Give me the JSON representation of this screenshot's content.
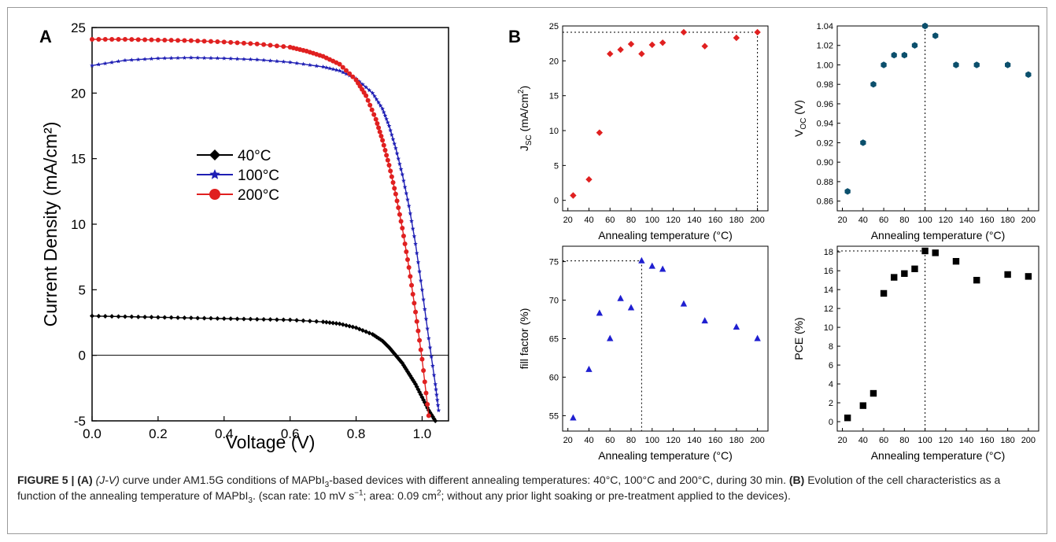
{
  "panelA": {
    "label": "A",
    "xlabel": "Voltage (V)",
    "ylabel": "Current Density (mA/cm²)"
  },
  "panelB": {
    "label": "B"
  },
  "caption": {
    "fig_label": "FIGURE 5 |",
    "a_label": "(A)",
    "jv": "(J-V)",
    "part1": " curve under AM1.5G conditions of MAPbI",
    "sub3": "3",
    "part2": "-based devices with different annealing temperatures: 40°C, 100°C and 200°C, during 30 min.",
    "b_label": "(B)",
    "part3": "Evolution of the cell characteristics as a function of the annealing temperature of MAPbI",
    "sub3b": "3",
    "part4": ". (scan rate: 10 mV s",
    "sup1": "−1",
    "part5": "; area: 0.09 cm",
    "sup2": "2",
    "part6": "; without any prior light soaking or pre-treatment applied to the devices)."
  },
  "chart_data": [
    {
      "type": "line",
      "panel": "A",
      "xlabel": "Voltage (V)",
      "ylabel": "Current Density (mA/cm²)",
      "xlim": [
        0,
        1.08
      ],
      "ylim": [
        -5,
        25
      ],
      "xticks": [
        0.0,
        0.2,
        0.4,
        0.6,
        0.8,
        1.0
      ],
      "yticks": [
        -5,
        0,
        5,
        10,
        15,
        20,
        25
      ],
      "xtick_labels": [
        "0.0",
        "0.2",
        "0.4",
        "0.6",
        "0.8",
        "1.0"
      ],
      "ytick_labels": [
        "-5",
        "0",
        "5",
        "10",
        "15",
        "20",
        "25"
      ],
      "legend_position": "center-left",
      "series": [
        {
          "name": "40°C",
          "color": "#000000",
          "marker": "diamond",
          "x": [
            0,
            0.1,
            0.2,
            0.3,
            0.4,
            0.5,
            0.6,
            0.7,
            0.75,
            0.8,
            0.85,
            0.88,
            0.9,
            0.92,
            0.94,
            0.96,
            0.98,
            1.0,
            1.02,
            1.04
          ],
          "y": [
            3.0,
            2.95,
            2.9,
            2.85,
            2.8,
            2.75,
            2.7,
            2.55,
            2.4,
            2.1,
            1.6,
            1.1,
            0.6,
            0.0,
            -0.6,
            -1.4,
            -2.2,
            -3.2,
            -4.2,
            -5.0
          ]
        },
        {
          "name": "100°C",
          "color": "#1f1fb4",
          "marker": "star",
          "x": [
            0,
            0.1,
            0.2,
            0.3,
            0.4,
            0.5,
            0.6,
            0.7,
            0.75,
            0.8,
            0.85,
            0.88,
            0.9,
            0.92,
            0.94,
            0.96,
            0.98,
            1.0,
            1.02,
            1.04,
            1.05
          ],
          "y": [
            22.1,
            22.5,
            22.65,
            22.7,
            22.65,
            22.55,
            22.35,
            22.0,
            21.7,
            21.1,
            20.0,
            18.8,
            17.5,
            15.8,
            13.8,
            11.4,
            8.5,
            5.0,
            1.3,
            -2.2,
            -4.2
          ]
        },
        {
          "name": "200°C",
          "color": "#e02020",
          "marker": "circle",
          "x": [
            0,
            0.1,
            0.2,
            0.3,
            0.4,
            0.5,
            0.6,
            0.65,
            0.7,
            0.75,
            0.8,
            0.83,
            0.86,
            0.88,
            0.9,
            0.92,
            0.94,
            0.96,
            0.98,
            1.0,
            1.02
          ],
          "y": [
            24.1,
            24.1,
            24.05,
            24.0,
            23.9,
            23.75,
            23.5,
            23.2,
            22.8,
            22.2,
            21.0,
            19.8,
            18.0,
            16.4,
            14.5,
            12.3,
            9.7,
            6.7,
            3.3,
            -0.3,
            -4.6
          ]
        }
      ]
    },
    {
      "type": "scatter",
      "panel": "B1",
      "xlabel": "Annealing temperature (°C)",
      "ylabel": "J_SC (mA/cm²)",
      "ylabel_main": "J",
      "ylabel_sub": "SC",
      "ylabel_rest": " (mA/cm",
      "ylabel_sup": "2",
      "ylabel_end": ")",
      "xlim": [
        15,
        210
      ],
      "ylim": [
        -1.5,
        25
      ],
      "xticks": [
        20,
        40,
        60,
        80,
        100,
        120,
        140,
        160,
        180,
        200
      ],
      "xtick_labels": [
        "20",
        "40",
        "60",
        "80",
        "100",
        "120",
        "140",
        "160",
        "180",
        "200"
      ],
      "yticks": [
        0,
        5,
        10,
        15,
        20,
        25
      ],
      "ytick_labels": [
        "0",
        "5",
        "10",
        "15",
        "20",
        "25"
      ],
      "color": "#e02020",
      "marker": "diamond",
      "x": [
        25,
        40,
        50,
        60,
        70,
        80,
        90,
        100,
        110,
        130,
        150,
        180,
        200
      ],
      "y": [
        0.7,
        3.0,
        9.7,
        21.0,
        21.6,
        22.4,
        21.0,
        22.3,
        22.6,
        24.1,
        22.1,
        23.3,
        24.1
      ],
      "ref_x": 200,
      "ref_y": 24.1
    },
    {
      "type": "scatter",
      "panel": "B2",
      "xlabel": "Annealing temperature (°C)",
      "ylabel": "V_OC (V)",
      "ylabel_main": "V",
      "ylabel_sub": "OC",
      "ylabel_rest": " (V)",
      "ylabel_sup": "",
      "ylabel_end": "",
      "xlim": [
        15,
        210
      ],
      "ylim": [
        0.85,
        1.04
      ],
      "xticks": [
        20,
        40,
        60,
        80,
        100,
        120,
        140,
        160,
        180,
        200
      ],
      "xtick_labels": [
        "20",
        "40",
        "60",
        "80",
        "100",
        "120",
        "140",
        "160",
        "180",
        "200"
      ],
      "yticks": [
        0.86,
        0.88,
        0.9,
        0.92,
        0.94,
        0.96,
        0.98,
        1.0,
        1.02,
        1.04
      ],
      "ytick_labels": [
        "0.86",
        "0.88",
        "0.90",
        "0.92",
        "0.94",
        "0.96",
        "0.98",
        "1.00",
        "1.02",
        "1.04"
      ],
      "color": "#0b4f6c",
      "marker": "hexagon",
      "x": [
        25,
        40,
        50,
        60,
        70,
        80,
        90,
        100,
        110,
        130,
        150,
        180,
        200
      ],
      "y": [
        0.87,
        0.92,
        0.98,
        1.0,
        1.01,
        1.01,
        1.02,
        1.04,
        1.03,
        1.0,
        1.0,
        1.0,
        0.99
      ],
      "ref_x": 100,
      "ref_y": 1.04
    },
    {
      "type": "scatter",
      "panel": "B3",
      "xlabel": "Annealing temperature (°C)",
      "ylabel": "fill factor (%)",
      "ylabel_main": "fill factor (%)",
      "ylabel_sub": "",
      "ylabel_rest": "",
      "ylabel_sup": "",
      "ylabel_end": "",
      "xlim": [
        15,
        210
      ],
      "ylim": [
        53,
        77
      ],
      "xticks": [
        20,
        40,
        60,
        80,
        100,
        120,
        140,
        160,
        180,
        200
      ],
      "xtick_labels": [
        "20",
        "40",
        "60",
        "80",
        "100",
        "120",
        "140",
        "160",
        "180",
        "200"
      ],
      "yticks": [
        55,
        60,
        65,
        70,
        75
      ],
      "ytick_labels": [
        "55",
        "60",
        "65",
        "70",
        "75"
      ],
      "color": "#1f1fd0",
      "marker": "triangle",
      "x": [
        25,
        40,
        50,
        60,
        70,
        80,
        90,
        100,
        110,
        130,
        150,
        180,
        200
      ],
      "y": [
        54.7,
        61.0,
        68.3,
        65.0,
        70.2,
        69.0,
        75.1,
        74.4,
        74.0,
        69.5,
        67.3,
        66.5,
        65.0
      ],
      "ref_x": 90,
      "ref_y": 75.1
    },
    {
      "type": "scatter",
      "panel": "B4",
      "xlabel": "Annealing temperature (°C)",
      "ylabel": "PCE (%)",
      "ylabel_main": "PCE (%)",
      "ylabel_sub": "",
      "ylabel_rest": "",
      "ylabel_sup": "",
      "ylabel_end": "",
      "xlim": [
        15,
        210
      ],
      "ylim": [
        -1,
        18.6
      ],
      "xticks": [
        20,
        40,
        60,
        80,
        100,
        120,
        140,
        160,
        180,
        200
      ],
      "xtick_labels": [
        "20",
        "40",
        "60",
        "80",
        "100",
        "120",
        "140",
        "160",
        "180",
        "200"
      ],
      "yticks": [
        0,
        2,
        4,
        6,
        8,
        10,
        12,
        14,
        16,
        18
      ],
      "ytick_labels": [
        "0",
        "2",
        "4",
        "6",
        "8",
        "10",
        "12",
        "14",
        "16",
        "18"
      ],
      "color": "#000000",
      "marker": "square",
      "x": [
        25,
        40,
        50,
        60,
        70,
        80,
        90,
        100,
        110,
        130,
        150,
        180,
        200
      ],
      "y": [
        0.4,
        1.7,
        3.0,
        13.6,
        15.3,
        15.7,
        16.2,
        18.1,
        17.9,
        17.0,
        15.0,
        15.6,
        15.4
      ],
      "ref_x": 100,
      "ref_y": 18.1
    }
  ]
}
